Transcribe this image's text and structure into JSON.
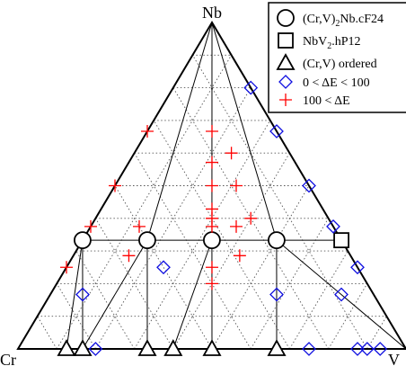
{
  "chart_data": {
    "type": "scatter",
    "coordinate_system": "ternary",
    "corners": {
      "top": "Nb",
      "left": "Cr",
      "right": "V"
    },
    "grid": true,
    "grid_step": 0.1,
    "legend": {
      "placement": "top-right",
      "entries": [
        {
          "marker": "circle",
          "color": "#000000",
          "label_main": "(Cr,V)",
          "label_sub": "2",
          "label_tail": "Nb.cF24"
        },
        {
          "marker": "square",
          "color": "#000000",
          "label_main": "NbV",
          "label_sub": "2",
          "label_tail": ".hP12"
        },
        {
          "marker": "triangle",
          "color": "#000000",
          "label_main": "(Cr,V) ordered",
          "label_sub": "",
          "label_tail": ""
        },
        {
          "marker": "diamond",
          "color": "#1010e0",
          "label_main": "0 < ΔE < 100",
          "label_sub": "",
          "label_tail": ""
        },
        {
          "marker": "plus",
          "color": "#ff0000",
          "label_main": "100 < ΔE",
          "label_sub": "",
          "label_tail": ""
        }
      ]
    },
    "series": [
      {
        "name": "(Cr,V)2Nb.cF24",
        "marker": "circle",
        "points": [
          {
            "nb": 0.333,
            "v": 0.0
          },
          {
            "nb": 0.333,
            "v": 0.1667
          },
          {
            "nb": 0.333,
            "v": 0.3333
          },
          {
            "nb": 0.333,
            "v": 0.5
          }
        ]
      },
      {
        "name": "NbV2.hP12",
        "marker": "square",
        "points": [
          {
            "nb": 0.333,
            "v": 0.667
          }
        ]
      },
      {
        "name": "(Cr,V) ordered",
        "marker": "triangle",
        "points": [
          {
            "nb": 0.0,
            "v": 0.125
          },
          {
            "nb": 0.0,
            "v": 0.1667
          },
          {
            "nb": 0.0,
            "v": 0.3333
          },
          {
            "nb": 0.0,
            "v": 0.4
          },
          {
            "nb": 0.0,
            "v": 0.5
          },
          {
            "nb": 0.0,
            "v": 0.6667
          }
        ]
      },
      {
        "name": "0 < ΔE < 100",
        "marker": "diamond",
        "points": [
          {
            "nb": 0.0,
            "v": 0.2
          },
          {
            "nb": 0.0,
            "v": 0.75
          },
          {
            "nb": 0.0,
            "v": 0.875
          },
          {
            "nb": 0.0,
            "v": 0.9
          },
          {
            "nb": 0.0,
            "v": 0.9333
          },
          {
            "nb": 0.1667,
            "v": 0.0833
          },
          {
            "nb": 0.1667,
            "v": 0.5833
          },
          {
            "nb": 0.25,
            "v": 0.25
          },
          {
            "nb": 0.1667,
            "v": 0.75
          },
          {
            "nb": 0.25,
            "v": 0.75
          },
          {
            "nb": 0.375,
            "v": 0.625
          },
          {
            "nb": 0.5,
            "v": 0.5
          },
          {
            "nb": 0.6667,
            "v": 0.3333
          },
          {
            "nb": 0.8,
            "v": 0.2
          }
        ]
      },
      {
        "name": "100 < ΔE",
        "marker": "plus",
        "points": [
          {
            "nb": 0.25,
            "v": 0.0
          },
          {
            "nb": 0.375,
            "v": 0.0
          },
          {
            "nb": 0.5,
            "v": 0.0
          },
          {
            "nb": 0.6667,
            "v": 0.0
          },
          {
            "nb": 0.2857,
            "v": 0.1429
          },
          {
            "nb": 0.375,
            "v": 0.125
          },
          {
            "nb": 0.2,
            "v": 0.4
          },
          {
            "nb": 0.25,
            "v": 0.375
          },
          {
            "nb": 0.2857,
            "v": 0.4286
          },
          {
            "nb": 0.375,
            "v": 0.3125
          },
          {
            "nb": 0.375,
            "v": 0.375
          },
          {
            "nb": 0.4,
            "v": 0.3
          },
          {
            "nb": 0.4286,
            "v": 0.2857
          },
          {
            "nb": 0.5,
            "v": 0.25
          },
          {
            "nb": 0.5714,
            "v": 0.2143
          },
          {
            "nb": 0.6667,
            "v": 0.1667
          },
          {
            "nb": 0.6,
            "v": 0.25
          },
          {
            "nb": 0.5,
            "v": 0.3125
          },
          {
            "nb": 0.4,
            "v": 0.4
          }
        ]
      }
    ],
    "tie_lines": [
      [
        {
          "nb": 0.333,
          "v": 0.0
        },
        {
          "nb": 1.0,
          "v": 0.0
        }
      ],
      [
        {
          "nb": 0.333,
          "v": 0.0
        },
        {
          "nb": 0.333,
          "v": 0.1667
        }
      ],
      [
        {
          "nb": 0.333,
          "v": 0.1667
        },
        {
          "nb": 0.333,
          "v": 0.3333
        }
      ],
      [
        {
          "nb": 0.333,
          "v": 0.3333
        },
        {
          "nb": 0.333,
          "v": 0.5
        }
      ],
      [
        {
          "nb": 0.333,
          "v": 0.5
        },
        {
          "nb": 0.333,
          "v": 0.667
        }
      ],
      [
        {
          "nb": 1.0,
          "v": 0.0
        },
        {
          "nb": 0.333,
          "v": 0.1667
        }
      ],
      [
        {
          "nb": 1.0,
          "v": 0.0
        },
        {
          "nb": 0.333,
          "v": 0.3333
        }
      ],
      [
        {
          "nb": 1.0,
          "v": 0.0
        },
        {
          "nb": 0.333,
          "v": 0.5
        }
      ],
      [
        {
          "nb": 1.0,
          "v": 0.0
        },
        {
          "nb": 0.333,
          "v": 0.667
        }
      ],
      [
        {
          "nb": 1.0,
          "v": 0.0
        },
        {
          "nb": 0.0,
          "v": 1.0
        }
      ],
      [
        {
          "nb": 0.333,
          "v": 0.667
        },
        {
          "nb": 0.0,
          "v": 1.0
        }
      ],
      [
        {
          "nb": 0.333,
          "v": 0.0
        },
        {
          "nb": 0.0,
          "v": 0.125
        }
      ],
      [
        {
          "nb": 0.333,
          "v": 0.0
        },
        {
          "nb": 0.0,
          "v": 0.1667
        }
      ],
      [
        {
          "nb": 0.333,
          "v": 0.1667
        },
        {
          "nb": 0.0,
          "v": 0.1667
        }
      ],
      [
        {
          "nb": 0.333,
          "v": 0.1667
        },
        {
          "nb": 0.0,
          "v": 0.3333
        }
      ],
      [
        {
          "nb": 0.333,
          "v": 0.3333
        },
        {
          "nb": 0.0,
          "v": 0.4
        }
      ],
      [
        {
          "nb": 0.333,
          "v": 0.3333
        },
        {
          "nb": 0.0,
          "v": 0.5
        }
      ],
      [
        {
          "nb": 0.333,
          "v": 0.5
        },
        {
          "nb": 0.0,
          "v": 0.6667
        }
      ],
      [
        {
          "nb": 0.333,
          "v": 0.5
        },
        {
          "nb": 0.0,
          "v": 1.0
        }
      ]
    ]
  }
}
